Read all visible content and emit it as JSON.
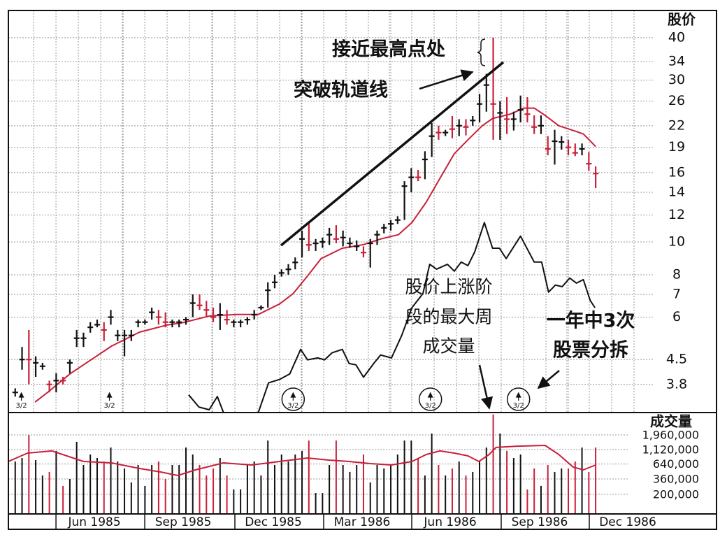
{
  "chart_data": {
    "type": "ohlc",
    "price_label": "股价",
    "xlim": [
      -1,
      102.7
    ],
    "xticks": [
      {
        "value": 11.6,
        "label": "Jun 1985"
      },
      {
        "value": 24.6,
        "label": "Sep 1985"
      },
      {
        "value": 37.8,
        "label": "Dec 1985"
      },
      {
        "value": 50.8,
        "label": "Mar 1986"
      },
      {
        "value": 63.7,
        "label": "Jun 1986"
      },
      {
        "value": 76.8,
        "label": "Sep 1986"
      },
      {
        "value": 89.7,
        "label": "Dec 1986"
      }
    ],
    "ylim": [
      3.14,
      48.1
    ],
    "log_scale": true,
    "yticks": [
      3.8,
      4.5,
      6,
      7,
      8,
      10,
      12,
      14,
      16,
      19,
      22,
      26,
      30,
      34,
      40
    ],
    "grid": true,
    "bars": {
      "high": [
        3.7,
        4.9,
        5.5,
        4.6,
        4.4,
        3.9,
        4.1,
        4.0,
        4.5,
        5.5,
        5.4,
        5.8,
        5.9,
        5.8,
        6.3,
        5.5,
        5.5,
        5.5,
        5.9,
        5.9,
        6.4,
        6.3,
        6.2,
        5.9,
        5.9,
        6.0,
        7.0,
        7.0,
        6.7,
        6.4,
        6.6,
        6.3,
        5.9,
        5.9,
        6.0,
        6.3,
        6.5,
        7.6,
        8.0,
        8.3,
        8.6,
        9.0,
        10.8,
        11.4,
        10.2,
        10.3,
        11.0,
        11.2,
        10.8,
        10.3,
        10.1,
        9.7,
        10.2,
        10.8,
        11.3,
        11.6,
        11.9,
        15.1,
        16.5,
        16.3,
        18.5,
        22.4,
        22.0,
        21.4,
        23.5,
        23.0,
        23.0,
        23.5,
        27.3,
        31.3,
        40,
        26.0,
        26.7,
        24.2,
        27.0,
        26.7,
        23.6,
        23.6,
        20.5,
        21.4,
        20.5,
        20.0,
        19.5,
        19.5,
        18.4,
        16.7
      ],
      "low": [
        3.5,
        4.2,
        3.8,
        4.0,
        4.2,
        3.6,
        3.6,
        3.8,
        4.1,
        4.9,
        4.9,
        5.4,
        5.6,
        5.1,
        5.7,
        5.1,
        4.6,
        5.1,
        5.6,
        5.7,
        5.9,
        5.7,
        5.6,
        5.6,
        5.6,
        5.7,
        6.0,
        6.3,
        6.0,
        5.8,
        5.5,
        5.7,
        5.6,
        5.6,
        5.7,
        5.9,
        6.3,
        6.4,
        7.3,
        7.9,
        8.0,
        8.3,
        9.0,
        9.4,
        9.4,
        9.6,
        9.8,
        9.9,
        9.7,
        9.6,
        9.4,
        9.0,
        8.4,
        9.8,
        10.6,
        10.8,
        11.3,
        11.6,
        14.0,
        15.1,
        15.3,
        17.8,
        20.0,
        20.5,
        20.2,
        20.5,
        20.6,
        22.0,
        22.5,
        24.2,
        20.0,
        20.0,
        20.8,
        21.3,
        22.5,
        22.5,
        20.8,
        20.8,
        18.0,
        16.9,
        18.7,
        18.0,
        17.9,
        18.0,
        16.2,
        14.4
      ],
      "close": [
        3.6,
        4.5,
        4.5,
        4.4,
        4.3,
        3.8,
        3.9,
        3.9,
        4.4,
        5.2,
        5.2,
        5.6,
        5.7,
        5.5,
        6.0,
        5.3,
        5.3,
        5.3,
        5.8,
        5.8,
        6.2,
        6.0,
        5.8,
        5.8,
        5.8,
        5.9,
        6.6,
        6.5,
        6.3,
        6.0,
        6.1,
        5.9,
        5.8,
        5.8,
        5.9,
        6.1,
        6.4,
        7.2,
        7.6,
        8.1,
        8.3,
        8.7,
        10.2,
        9.8,
        9.9,
        10.0,
        10.5,
        10.2,
        10.3,
        9.9,
        9.7,
        9.3,
        9.9,
        10.5,
        11.0,
        11.3,
        11.6,
        14.6,
        15.5,
        15.5,
        17.5,
        20.5,
        21.0,
        21.0,
        21.5,
        22.0,
        21.8,
        22.8,
        25.5,
        29.0,
        25.5,
        24.0,
        23.0,
        23.0,
        24.5,
        23.8,
        21.8,
        22.0,
        18.8,
        19.8,
        19.7,
        19.0,
        18.3,
        18.8,
        17.0,
        15.9
      ],
      "colors": [
        "#111",
        "#111",
        "#c8203a",
        "#111",
        "#111",
        "#c8203a",
        "#111",
        "#c8203a",
        "#111",
        "#111",
        "#111",
        "#111",
        "#111",
        "#c8203a",
        "#111",
        "#111",
        "#111",
        "#111",
        "#111",
        "#111",
        "#111",
        "#c8203a",
        "#c8203a",
        "#111",
        "#111",
        "#111",
        "#111",
        "#c8203a",
        "#c8203a",
        "#c8203a",
        "#111",
        "#c8203a",
        "#111",
        "#111",
        "#111",
        "#111",
        "#111",
        "#111",
        "#111",
        "#111",
        "#111",
        "#111",
        "#111",
        "#c8203a",
        "#111",
        "#111",
        "#111",
        "#c8203a",
        "#111",
        "#111",
        "#111",
        "#c8203a",
        "#111",
        "#111",
        "#111",
        "#111",
        "#111",
        "#111",
        "#111",
        "#c8203a",
        "#111",
        "#111",
        "#c8203a",
        "#111",
        "#c8203a",
        "#111",
        "#c8203a",
        "#111",
        "#111",
        "#111",
        "#c8203a",
        "#111",
        "#c8203a",
        "#111",
        "#111",
        "#c8203a",
        "#c8203a",
        "#111",
        "#c8203a",
        "#111",
        "#111",
        "#c8203a",
        "#c8203a",
        "#111",
        "#c8203a",
        "#c8203a"
      ]
    },
    "moving_average": {
      "color": "#c8203a",
      "x": [
        2.9,
        4.9,
        8.0,
        11.1,
        14.1,
        18.2,
        22.3,
        24.4,
        28.5,
        32.5,
        35.6,
        38.7,
        40.7,
        42.8,
        44.8,
        47.9,
        51.0,
        53.5,
        56.1,
        58.1,
        60.2,
        62.2,
        64.3,
        66.3,
        68.4,
        69.9,
        72.5,
        74.5,
        76.0,
        77.6,
        79.6,
        81.7,
        83.2,
        85.0
      ],
      "values": [
        3.37,
        3.62,
        4.08,
        4.49,
        4.93,
        5.42,
        5.69,
        5.77,
        6.05,
        6.11,
        6.11,
        6.56,
        7.04,
        7.93,
        8.93,
        9.58,
        9.82,
        10.2,
        10.5,
        11.4,
        13.1,
        15.4,
        18.2,
        20.0,
        22.0,
        23.1,
        23.8,
        24.8,
        24.8,
        23.6,
        22.0,
        21.3,
        20.8,
        19.1
      ]
    },
    "relative_strength": {
      "color": "#111",
      "x": [
        25.4,
        26.9,
        28.4,
        29.6,
        30.5,
        33,
        35.6,
        37.1,
        38.7,
        40.2,
        41.8,
        42.8,
        44.3,
        45.3,
        46.4,
        47.9,
        48.9,
        49.9,
        51.0,
        52.5,
        53.5,
        55.1,
        56.6,
        58.1,
        59.7,
        60.7,
        61.7,
        63.3,
        64.3,
        65.3,
        66.3,
        67.3,
        68.7,
        69.9,
        70.9,
        71.9,
        74.0,
        76.0,
        77.1,
        78.1,
        79.1,
        80.1,
        81.2,
        82.2,
        83.2,
        84.2,
        84.9
      ],
      "values": [
        3.54,
        3.26,
        3.2,
        3.5,
        3.14,
        null,
        3.14,
        3.84,
        3.93,
        4.08,
        4.82,
        4.49,
        4.55,
        4.49,
        4.71,
        4.82,
        4.38,
        4.34,
        3.99,
        4.38,
        4.64,
        4.55,
        5.3,
        6.4,
        7.04,
        8.59,
        8.31,
        8.59,
        8.2,
        8.72,
        8.51,
        9.36,
        11.4,
        9.58,
        9.58,
        8.93,
        10.4,
        8.72,
        8.72,
        7.11,
        7.46,
        7.38,
        7.82,
        7.56,
        7.74,
        6.72,
        6.4
      ]
    },
    "volume": {
      "label": "成交量",
      "ylim": [
        94000,
        4390000
      ],
      "log_scale": true,
      "yticks": [
        {
          "value": 1960000,
          "label": "1,960,000"
        },
        {
          "value": 1120000,
          "label": "1,120,000"
        },
        {
          "value": 640000,
          "label": "640,000"
        },
        {
          "value": 360000,
          "label": "360,000"
        },
        {
          "value": 200000,
          "label": "200,000"
        }
      ],
      "values": [
        705000,
        807000,
        1960000,
        745000,
        412000,
        472000,
        1060000,
        276000,
        360000,
        1500000,
        617000,
        923000,
        807000,
        705000,
        1210000,
        705000,
        540000,
        315000,
        617000,
        276000,
        617000,
        705000,
        360000,
        617000,
        617000,
        1210000,
        923000,
        617000,
        412000,
        540000,
        807000,
        412000,
        241000,
        241000,
        617000,
        705000,
        412000,
        1580000,
        617000,
        923000,
        705000,
        923000,
        1060000,
        1580000,
        210000,
        210000,
        617000,
        1580000,
        617000,
        472000,
        617000,
        923000,
        315000,
        617000,
        540000,
        617000,
        923000,
        1580000,
        1580000,
        807000,
        412000,
        2070000,
        617000,
        412000,
        540000,
        705000,
        412000,
        472000,
        705000,
        1210000,
        4300000,
        2070000,
        1060000,
        807000,
        923000,
        241000,
        540000,
        276000,
        617000,
        472000,
        540000,
        540000,
        705000,
        1210000,
        472000,
        1210000
      ],
      "average": {
        "color": "#c8203a",
        "x": [
          -1.0,
          1.8,
          5.4,
          10.0,
          14.1,
          18.2,
          21.3,
          23.8,
          26.4,
          30.5,
          34.6,
          38.7,
          42.8,
          45.9,
          48.9,
          52.0,
          55.1,
          58.1,
          60.2,
          62.2,
          64.3,
          66.3,
          67.9,
          69.4,
          70.4,
          73.5,
          77.6,
          79.6,
          81.7,
          83.2,
          85.0
        ],
        "values": [
          705000,
          974000,
          1060000,
          705000,
          669000,
          540000,
          472000,
          412000,
          511000,
          669000,
          617000,
          705000,
          807000,
          745000,
          705000,
          651000,
          617000,
          705000,
          923000,
          1060000,
          974000,
          875000,
          705000,
          923000,
          1210000,
          1270000,
          1310000,
          923000,
          569000,
          511000,
          617000
        ]
      }
    },
    "splits": [
      {
        "x": 0.9,
        "label": "3/2",
        "circled": false
      },
      {
        "x": 13.8,
        "label": "3/2",
        "circled": false
      },
      {
        "x": 40.7,
        "label": "3/2",
        "circled": true
      },
      {
        "x": 60.8,
        "label": "3/2",
        "circled": true
      },
      {
        "x": 73.7,
        "label": "3/2",
        "circled": true
      }
    ],
    "annotations": {
      "peak": "接近最高点处",
      "breakout": "突破轨道线",
      "max_volume": [
        "股价上涨阶",
        "段的最大周",
        "成交量"
      ],
      "splits_note": [
        "一年中3次",
        "股票分拆"
      ]
    }
  }
}
